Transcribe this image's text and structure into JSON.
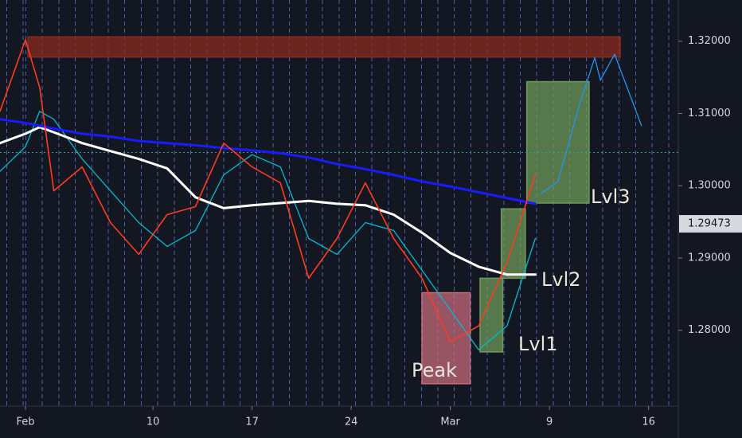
{
  "chart_data": {
    "type": "line",
    "x": [
      -1.8,
      0,
      1,
      2,
      4,
      6,
      8,
      10,
      12,
      14,
      16,
      18,
      20,
      22,
      24,
      26,
      28,
      30,
      32,
      34,
      36
    ],
    "xlim": [
      -1.8,
      46.1
    ],
    "xticks": [
      {
        "value": 0,
        "label": "Feb"
      },
      {
        "value": 9,
        "label": "10"
      },
      {
        "value": 16,
        "label": "17"
      },
      {
        "value": 23,
        "label": "24"
      },
      {
        "value": 30,
        "label": "Mar"
      },
      {
        "value": 37,
        "label": "9"
      },
      {
        "value": 44,
        "label": "16"
      }
    ],
    "ylim": [
      1.2695,
      1.3257
    ],
    "yticks": [
      {
        "value": 1.32,
        "label": "1.32000"
      },
      {
        "value": 1.31,
        "label": "1.31000"
      },
      {
        "value": 1.3,
        "label": "1.30000"
      },
      {
        "value": 1.29,
        "label": "1.29000"
      },
      {
        "value": 1.28,
        "label": "1.28000"
      }
    ],
    "series": [
      {
        "color": "#00bcd4",
        "values": [
          1.302,
          1.3054,
          1.3103,
          1.3092,
          1.3037,
          1.2993,
          1.2949,
          1.2916,
          1.2938,
          1.3015,
          1.3043,
          1.3026,
          1.2927,
          1.2905,
          1.2949,
          1.2938,
          1.2883,
          1.2828,
          1.2773,
          1.2806,
          1.2927
        ]
      },
      {
        "color": "#ffffff",
        "values": [
          1.3059,
          1.3072,
          1.3081,
          1.3074,
          1.3059,
          1.3048,
          1.3037,
          1.3024,
          1.2984,
          1.2969,
          1.2973,
          1.2976,
          1.2979,
          1.2975,
          1.2973,
          1.296,
          1.2935,
          1.2907,
          1.2888,
          1.2877,
          1.2877
        ]
      },
      {
        "color": "#1a1aff",
        "values": [
          1.3092,
          1.3087,
          1.3083,
          1.3079,
          1.3072,
          1.3068,
          1.3062,
          1.3059,
          1.3056,
          1.3052,
          1.3049,
          1.3045,
          1.3039,
          1.303,
          1.3023,
          1.3015,
          1.3006,
          1.2999,
          1.2991,
          1.2983,
          1.2975
        ]
      },
      {
        "color": "#ff3b1f",
        "values": [
          1.3103,
          1.3202,
          1.3136,
          1.2993,
          1.3026,
          1.2949,
          1.2905,
          1.296,
          1.2971,
          1.3059,
          1.3026,
          1.3004,
          1.2872,
          1.2927,
          1.3004,
          1.2927,
          1.2872,
          1.2784,
          1.2806,
          1.2894,
          1.3015
        ]
      },
      {
        "color": "#2196f3",
        "x": [
          36.4,
          37.6,
          39.1,
          40.2,
          40.6,
          41.6,
          43.5
        ],
        "values": [
          1.2989,
          1.3006,
          1.3111,
          1.3177,
          1.3146,
          1.3182,
          1.3083
        ]
      }
    ],
    "hline": 1.3046,
    "price_label": {
      "value": 1.29473,
      "label": "1.29473"
    },
    "zones": [
      {
        "xlim": [
          0.17,
          42.0
        ],
        "ylim": [
          1.3178,
          1.3206
        ],
        "color": "#8b2a1e"
      },
      {
        "xlim": [
          35.4,
          39.8
        ],
        "ylim": [
          1.2976,
          1.3144
        ],
        "color": "#6e9a5a",
        "label": "Lvl3"
      },
      {
        "xlim": [
          33.6,
          35.3
        ],
        "ylim": [
          1.2872,
          1.2968
        ],
        "color": "#6e9a5a",
        "label": "Lvl2"
      },
      {
        "xlim": [
          32.1,
          33.7
        ],
        "ylim": [
          1.277,
          1.2872
        ],
        "color": "#6e9a5a",
        "label": "Lvl1"
      },
      {
        "xlim": [
          28.0,
          31.4
        ],
        "ylim": [
          1.2726,
          1.2852
        ],
        "color": "#c46a7a",
        "label": "Peak"
      }
    ]
  }
}
